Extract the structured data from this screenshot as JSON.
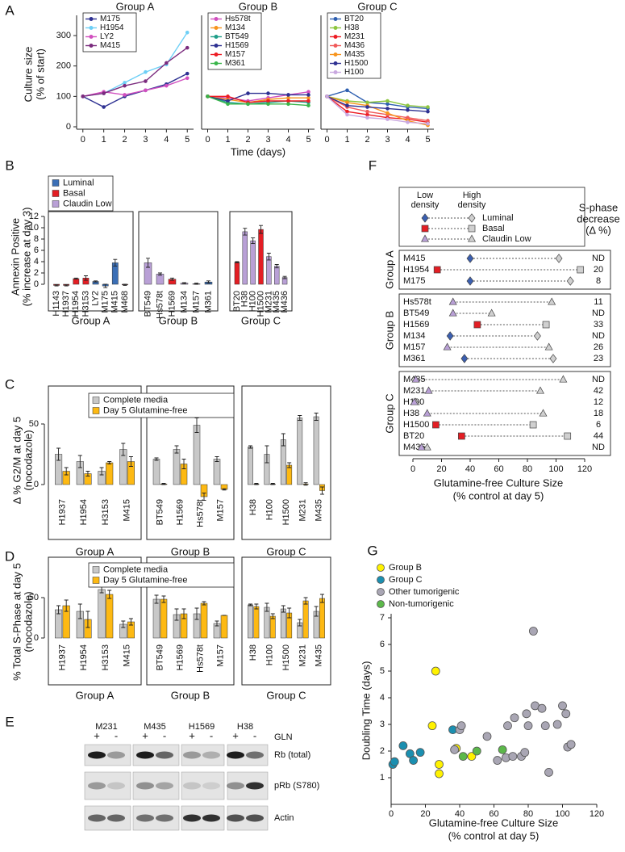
{
  "chart_data": [
    {
      "panel": "A",
      "type": "line",
      "y_label": [
        "Culture size",
        "(% of start)"
      ],
      "x_label": "Time (days)",
      "x": [
        0,
        1,
        2,
        3,
        4,
        5
      ],
      "xlim": [
        -0.3,
        5.3
      ],
      "xticks": [
        0,
        1,
        2,
        3,
        4,
        5
      ],
      "ylim": [
        0,
        340
      ],
      "yticks": [
        0,
        100,
        200,
        300
      ],
      "panels": [
        {
          "title": "Group A",
          "series": [
            {
              "name": "M175",
              "color": "#2e3192",
              "values": [
                100,
                65,
                100,
                120,
                140,
                175
              ]
            },
            {
              "name": "H1954",
              "color": "#6dcff6",
              "values": [
                100,
                110,
                145,
                180,
                205,
                310
              ]
            },
            {
              "name": "LY2",
              "color": "#d14fbf",
              "values": [
                100,
                115,
                105,
                120,
                135,
                160
              ]
            },
            {
              "name": "M415",
              "color": "#7b2c7e",
              "values": [
                100,
                110,
                135,
                150,
                210,
                260
              ]
            }
          ]
        },
        {
          "title": "Group B",
          "series": [
            {
              "name": "Hs578t",
              "color": "#d14fbf",
              "values": [
                100,
                95,
                85,
                95,
                105,
                115
              ]
            },
            {
              "name": "M134",
              "color": "#f7941d",
              "values": [
                100,
                90,
                80,
                90,
                95,
                95
              ]
            },
            {
              "name": "BT549",
              "color": "#1f9e89",
              "values": [
                100,
                80,
                75,
                80,
                85,
                80
              ]
            },
            {
              "name": "H1569",
              "color": "#2e3192",
              "values": [
                100,
                85,
                110,
                110,
                105,
                105
              ]
            },
            {
              "name": "M157",
              "color": "#ed1c24",
              "values": [
                100,
                100,
                80,
                85,
                85,
                85
              ]
            },
            {
              "name": "M361",
              "color": "#39b54a",
              "values": [
                100,
                75,
                75,
                75,
                75,
                70
              ]
            }
          ]
        },
        {
          "title": "Group C",
          "series": [
            {
              "name": "BT20",
              "color": "#2e5fb0",
              "values": [
                100,
                120,
                80,
                75,
                65,
                60
              ]
            },
            {
              "name": "H38",
              "color": "#8dc63f",
              "values": [
                100,
                85,
                80,
                85,
                70,
                65
              ]
            },
            {
              "name": "M231",
              "color": "#ed1c24",
              "values": [
                100,
                50,
                40,
                30,
                25,
                15
              ]
            },
            {
              "name": "M436",
              "color": "#f05a5a",
              "values": [
                100,
                65,
                50,
                40,
                30,
                20
              ]
            },
            {
              "name": "M435",
              "color": "#f7941d",
              "values": [
                100,
                80,
                70,
                45,
                20,
                5
              ]
            },
            {
              "name": "H1500",
              "color": "#2e3192",
              "values": [
                100,
                70,
                65,
                60,
                55,
                50
              ]
            },
            {
              "name": "H100",
              "color": "#c9a8e0",
              "values": [
                100,
                40,
                30,
                25,
                15,
                10
              ]
            }
          ]
        }
      ]
    },
    {
      "panel": "B",
      "type": "bar",
      "y_label": [
        "Annexin Positive",
        "(% increase at day 3)"
      ],
      "ylim": [
        0,
        12
      ],
      "yticks": [
        0,
        2,
        4,
        6,
        8,
        10,
        12
      ],
      "series": [
        {
          "name": "Luminal",
          "color": "#3b6fb6"
        },
        {
          "name": "Basal",
          "color": "#e31e24"
        },
        {
          "name": "Claudin Low",
          "color": "#b9a0d6"
        }
      ],
      "groups": [
        {
          "name": "Group A",
          "categories": [
            "H1143",
            "H1937",
            "H1954",
            "H3153",
            "LY2",
            "M175",
            "M415",
            "M468"
          ],
          "values": [
            -0.2,
            -0.2,
            1.0,
            1.1,
            0.5,
            -0.3,
            3.8,
            -0.1
          ],
          "errors": [
            0.1,
            0.1,
            0.1,
            0.4,
            0.1,
            0.3,
            0.6,
            0.1
          ],
          "colors": [
            "#e31e24",
            "#e31e24",
            "#e31e24",
            "#e31e24",
            "#3b6fb6",
            "#3b6fb6",
            "#3b6fb6",
            "#e31e24"
          ]
        },
        {
          "name": "Group B",
          "categories": [
            "BT549",
            "Hs578t",
            "H1569",
            "M134",
            "M157",
            "M361"
          ],
          "values": [
            3.8,
            1.8,
            0.9,
            0.2,
            0.1,
            0.4
          ],
          "errors": [
            0.8,
            0.2,
            0.2,
            0.1,
            0.1,
            0.2
          ],
          "colors": [
            "#b9a0d6",
            "#b9a0d6",
            "#e31e24",
            "#b9a0d6",
            "#b9a0d6",
            "#3b6fb6"
          ]
        },
        {
          "name": "Group C",
          "categories": [
            "BT20",
            "H38",
            "H100",
            "H1500",
            "M231",
            "M435",
            "M436"
          ],
          "values": [
            3.9,
            9.3,
            7.7,
            9.7,
            4.9,
            3.2,
            1.2
          ],
          "errors": [
            0.1,
            0.6,
            0.5,
            0.7,
            0.6,
            0.3,
            0.2
          ],
          "colors": [
            "#e31e24",
            "#b9a0d6",
            "#b9a0d6",
            "#e31e24",
            "#b9a0d6",
            "#b9a0d6",
            "#b9a0d6"
          ]
        }
      ]
    },
    {
      "panel": "C",
      "type": "bar",
      "y_label": [
        "Δ % G2/M at day 5",
        "(nocodazole)"
      ],
      "ylim": [
        -20,
        70
      ],
      "yticks": [
        0,
        50
      ],
      "series": [
        {
          "name": "Complete media",
          "color": "#c8c8c8"
        },
        {
          "name": "Day 5 Glutamine-free",
          "color": "#fdb913"
        }
      ],
      "groups": [
        {
          "name": "Group A",
          "categories": [
            "H1937",
            "H1954",
            "H3153",
            "M415"
          ],
          "values": [
            [
              25,
              19,
              11,
              29
            ],
            [
              11,
              9,
              18,
              19
            ]
          ],
          "errors": [
            [
              5,
              5,
              3,
              5
            ],
            [
              3,
              2,
              1,
              4
            ]
          ]
        },
        {
          "name": "Group B",
          "categories": [
            "BT549",
            "H1569",
            "Hs578t",
            "M157"
          ],
          "values": [
            [
              21,
              29,
              49,
              21
            ],
            [
              0.5,
              17,
              -10,
              -4
            ]
          ],
          "errors": [
            [
              1,
              3,
              6,
              2
            ],
            [
              0.5,
              4,
              3,
              0.5
            ]
          ]
        },
        {
          "name": "Group C",
          "categories": [
            "H38",
            "H100",
            "H1500",
            "M231",
            "M435"
          ],
          "values": [
            [
              31,
              25,
              37,
              55,
              56
            ],
            [
              0.5,
              0.5,
              16,
              0.5,
              -5
            ]
          ],
          "errors": [
            [
              1,
              7,
              5,
              2,
              3
            ],
            [
              0.5,
              0.5,
              2,
              1,
              3
            ]
          ]
        }
      ]
    },
    {
      "panel": "D",
      "type": "bar",
      "y_label": [
        "% Total S-Phase at day 5",
        "(nocodazole)"
      ],
      "ylim": [
        0,
        80
      ],
      "yticks": [
        0,
        50
      ],
      "series": [
        {
          "name": "Complete media",
          "color": "#c8c8c8"
        },
        {
          "name": "Day 5 Glutamine-free",
          "color": "#fdb913"
        }
      ],
      "groups": [
        {
          "name": "Group A",
          "categories": [
            "H1937",
            "H1954",
            "H3153",
            "M415"
          ],
          "values": [
            [
              35,
              33,
              60,
              17
            ],
            [
              40,
              23,
              54,
              20
            ]
          ],
          "errors": [
            [
              5,
              9,
              4,
              4
            ],
            [
              7,
              10,
              5,
              4
            ]
          ]
        },
        {
          "name": "Group B",
          "categories": [
            "BT549",
            "H1569",
            "Hs578t",
            "M157"
          ],
          "values": [
            [
              48,
              29,
              30,
              18
            ],
            [
              48,
              30,
              43,
              28
            ]
          ],
          "errors": [
            [
              5,
              7,
              7,
              3
            ],
            [
              4,
              6,
              2,
              0
            ]
          ]
        },
        {
          "name": "Group C",
          "categories": [
            "H38",
            "H100",
            "H1500",
            "M231",
            "M435"
          ],
          "values": [
            [
              41,
              38,
              36,
              19,
              33
            ],
            [
              39,
              27,
              31,
              46,
              49
            ]
          ],
          "errors": [
            [
              1,
              5,
              4,
              4,
              6
            ],
            [
              3,
              3,
              6,
              4,
              5
            ]
          ]
        }
      ]
    },
    {
      "panel": "F",
      "type": "dumbbell",
      "legend_headers": [
        [
          "Low",
          "density"
        ],
        [
          "High",
          "density"
        ]
      ],
      "legend": [
        {
          "name": "Luminal",
          "color": "#3b5fb0",
          "marker": "diamond"
        },
        {
          "name": "Basal",
          "color": "#e31e24",
          "marker": "square"
        },
        {
          "name": "Claudin Low",
          "color": "#b9a0d6",
          "marker": "triangle"
        }
      ],
      "high_color": "#d0d0d0",
      "s_phase_header": [
        "S-phase",
        "decrease",
        "(Δ %)"
      ],
      "x_label": [
        "Glutamine-free Culture Size",
        "(% control at day 5)"
      ],
      "xlim": [
        0,
        120
      ],
      "xticks": [
        0,
        20,
        40,
        60,
        80,
        100,
        120
      ],
      "groups": [
        {
          "name": "Group A",
          "categories": [
            "M415",
            "H1954",
            "M175"
          ],
          "low": [
            40,
            17,
            40
          ],
          "high": [
            102,
            117,
            110
          ],
          "s_phase": [
            "ND",
            20,
            8
          ],
          "markers": [
            "diamond",
            "square",
            "diamond"
          ],
          "colors": [
            "#3b5fb0",
            "#e31e24",
            "#3b5fb0"
          ]
        },
        {
          "name": "Group B",
          "categories": [
            "Hs578t",
            "BT549",
            "H1569",
            "M134",
            "M157",
            "M361"
          ],
          "low": [
            28,
            28,
            45,
            26,
            24,
            36
          ],
          "high": [
            97,
            55,
            93,
            87,
            95,
            98
          ],
          "s_phase": [
            11,
            "ND",
            33,
            "ND",
            26,
            23
          ],
          "markers": [
            "triangle",
            "triangle",
            "square",
            "diamond",
            "triangle",
            "diamond"
          ],
          "colors": [
            "#b9a0d6",
            "#b9a0d6",
            "#e31e24",
            "#3b5fb0",
            "#b9a0d6",
            "#3b5fb0"
          ]
        },
        {
          "name": "Group C",
          "categories": [
            "M435",
            "M231",
            "H100",
            "H38",
            "H1500",
            "BT20",
            "M436"
          ],
          "low": [
            2,
            11,
            1,
            10,
            16,
            34,
            6
          ],
          "high": [
            105,
            89,
            2,
            91,
            84,
            108,
            10
          ],
          "s_phase": [
            "ND",
            42,
            12,
            18,
            6,
            44,
            "ND"
          ],
          "markers": [
            "triangle",
            "triangle",
            "triangle",
            "triangle",
            "square",
            "square",
            "triangle"
          ],
          "colors": [
            "#b9a0d6",
            "#b9a0d6",
            "#b9a0d6",
            "#b9a0d6",
            "#e31e24",
            "#e31e24",
            "#b9a0d6"
          ]
        }
      ]
    },
    {
      "panel": "G",
      "type": "scatter",
      "y_label": "Doubling Time (days)",
      "x_label": [
        "Glutamine-free Culture Size",
        "(% control at day 5)"
      ],
      "xlim": [
        0,
        120
      ],
      "xticks": [
        0,
        20,
        40,
        60,
        80,
        100,
        120
      ],
      "ylim": [
        0,
        7
      ],
      "yticks": [
        1,
        2,
        3,
        4,
        5,
        6,
        7
      ],
      "series": [
        {
          "name": "Group B",
          "color": "#fff200",
          "x": [
            26,
            24,
            28,
            28,
            38,
            47
          ],
          "y": [
            5.0,
            2.95,
            1.5,
            1.15,
            2.1,
            1.8
          ]
        },
        {
          "name": "Group C",
          "color": "#1b8fb0",
          "x": [
            1,
            2,
            7,
            11,
            13,
            17,
            36
          ],
          "y": [
            1.5,
            1.6,
            2.2,
            1.9,
            1.65,
            1.95,
            2.8
          ]
        },
        {
          "name": "Other tumorigenic",
          "color": "#a9a6b4",
          "x": [
            37,
            40,
            41,
            56,
            62,
            67,
            68,
            71,
            72,
            76,
            78,
            79,
            80,
            83,
            84,
            88,
            90,
            92,
            97,
            100,
            102,
            103,
            105
          ],
          "y": [
            2.05,
            2.8,
            2.95,
            2.55,
            1.65,
            1.75,
            2.95,
            1.8,
            3.25,
            1.8,
            1.95,
            3.4,
            2.95,
            6.5,
            3.7,
            3.6,
            2.95,
            1.2,
            3.0,
            3.7,
            3.4,
            2.15,
            2.25
          ]
        },
        {
          "name": "Non-tumorigenic",
          "color": "#5cb84a",
          "x": [
            42,
            50,
            65
          ],
          "y": [
            1.8,
            2.0,
            2.05
          ]
        }
      ]
    }
  ],
  "blot": {
    "panel": "E",
    "lanes": [
      "M231",
      "M435",
      "H1569",
      "H38"
    ],
    "signs": [
      "+",
      "-",
      "+",
      "-",
      "+",
      "-",
      "+",
      "-"
    ],
    "treatment": "GLN",
    "rows": [
      "Rb (total)",
      "pRb (S780)",
      "Actin"
    ]
  }
}
